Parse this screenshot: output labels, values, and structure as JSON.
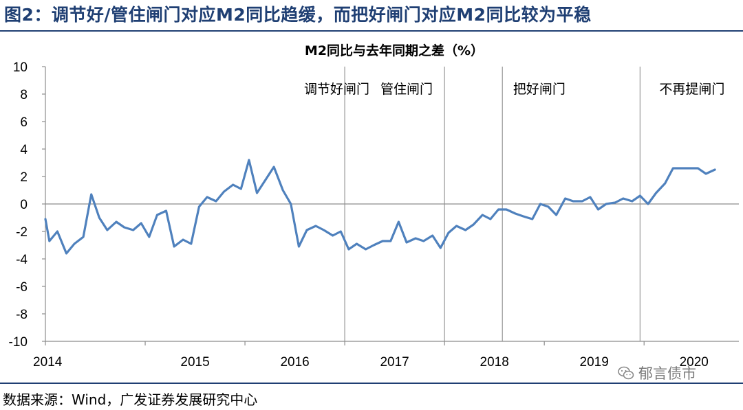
{
  "figure": {
    "title": "图2：调节好/管住闸门对应M2同比趋缓，而把好闸门对应M2同比较为平稳",
    "source": "数据来源：Wind，广发证券发展研究中心",
    "watermark": "郁言债市",
    "watermark_icon": "wechat-icon",
    "accent_color": "#1f3f73"
  },
  "chart_data": {
    "type": "line",
    "title": "M2同比与去年同期之差（%）",
    "xlabel": "",
    "ylabel": "",
    "ylim": [
      -10,
      10
    ],
    "yticks": [
      10,
      8,
      6,
      4,
      2,
      0,
      -2,
      -4,
      -6,
      -8,
      -10
    ],
    "xlim": [
      2014.0,
      2020.95
    ],
    "xticks": [
      "2014",
      "2015",
      "2016",
      "2017",
      "2018",
      "2019",
      "2020"
    ],
    "grid": false,
    "legend": "none",
    "line_color": "#4f81bd",
    "dividers": [
      2017.0,
      2018.0,
      2018.58,
      2019.96
    ],
    "annotations": [
      {
        "text": "调节好闸门",
        "x": 2016.92
      },
      {
        "text": "管住闸门",
        "x": 2017.62
      },
      {
        "text": "把好闸门",
        "x": 2018.95
      },
      {
        "text": "不再提闸门",
        "x": 2020.48
      }
    ],
    "series": [
      {
        "points": [
          [
            2014.0,
            -1.1
          ],
          [
            2014.04,
            -2.7
          ],
          [
            2014.12,
            -2.0
          ],
          [
            2014.21,
            -3.6
          ],
          [
            2014.29,
            -2.9
          ],
          [
            2014.38,
            -2.4
          ],
          [
            2014.46,
            0.7
          ],
          [
            2014.54,
            -1.0
          ],
          [
            2014.62,
            -1.9
          ],
          [
            2014.71,
            -1.3
          ],
          [
            2014.79,
            -1.7
          ],
          [
            2014.88,
            -1.9
          ],
          [
            2014.96,
            -1.4
          ],
          [
            2015.04,
            -2.4
          ],
          [
            2015.12,
            -0.8
          ],
          [
            2015.21,
            -0.5
          ],
          [
            2015.29,
            -3.1
          ],
          [
            2015.38,
            -2.6
          ],
          [
            2015.46,
            -2.9
          ],
          [
            2015.54,
            -0.2
          ],
          [
            2015.62,
            0.5
          ],
          [
            2015.71,
            0.2
          ],
          [
            2015.79,
            0.9
          ],
          [
            2015.88,
            1.4
          ],
          [
            2015.96,
            1.1
          ],
          [
            2016.04,
            3.2
          ],
          [
            2016.12,
            0.8
          ],
          [
            2016.21,
            1.8
          ],
          [
            2016.29,
            2.7
          ],
          [
            2016.38,
            1.0
          ],
          [
            2016.46,
            0.0
          ],
          [
            2016.54,
            -3.1
          ],
          [
            2016.62,
            -1.9
          ],
          [
            2016.71,
            -1.6
          ],
          [
            2016.79,
            -1.9
          ],
          [
            2016.88,
            -2.3
          ],
          [
            2016.96,
            -2.0
          ],
          [
            2017.04,
            -3.3
          ],
          [
            2017.12,
            -2.9
          ],
          [
            2017.21,
            -3.3
          ],
          [
            2017.29,
            -3.0
          ],
          [
            2017.38,
            -2.7
          ],
          [
            2017.46,
            -2.7
          ],
          [
            2017.54,
            -1.3
          ],
          [
            2017.62,
            -2.8
          ],
          [
            2017.71,
            -2.5
          ],
          [
            2017.79,
            -2.7
          ],
          [
            2017.88,
            -2.3
          ],
          [
            2017.96,
            -3.2
          ],
          [
            2018.04,
            -2.1
          ],
          [
            2018.12,
            -1.6
          ],
          [
            2018.21,
            -1.9
          ],
          [
            2018.29,
            -1.5
          ],
          [
            2018.38,
            -0.8
          ],
          [
            2018.46,
            -1.1
          ],
          [
            2018.54,
            -0.4
          ],
          [
            2018.62,
            -0.4
          ],
          [
            2018.71,
            -0.7
          ],
          [
            2018.79,
            -0.9
          ],
          [
            2018.88,
            -1.1
          ],
          [
            2018.96,
            0.0
          ],
          [
            2019.04,
            -0.2
          ],
          [
            2019.12,
            -0.8
          ],
          [
            2019.21,
            0.4
          ],
          [
            2019.29,
            0.2
          ],
          [
            2019.38,
            0.2
          ],
          [
            2019.46,
            0.5
          ],
          [
            2019.54,
            -0.4
          ],
          [
            2019.62,
            0.0
          ],
          [
            2019.71,
            0.1
          ],
          [
            2019.79,
            0.4
          ],
          [
            2019.88,
            0.2
          ],
          [
            2019.96,
            0.6
          ],
          [
            2020.04,
            0.0
          ],
          [
            2020.12,
            0.8
          ],
          [
            2020.21,
            1.5
          ],
          [
            2020.29,
            2.6
          ],
          [
            2020.38,
            2.6
          ],
          [
            2020.46,
            2.6
          ],
          [
            2020.54,
            2.6
          ],
          [
            2020.62,
            2.2
          ],
          [
            2020.71,
            2.5
          ]
        ]
      }
    ]
  }
}
